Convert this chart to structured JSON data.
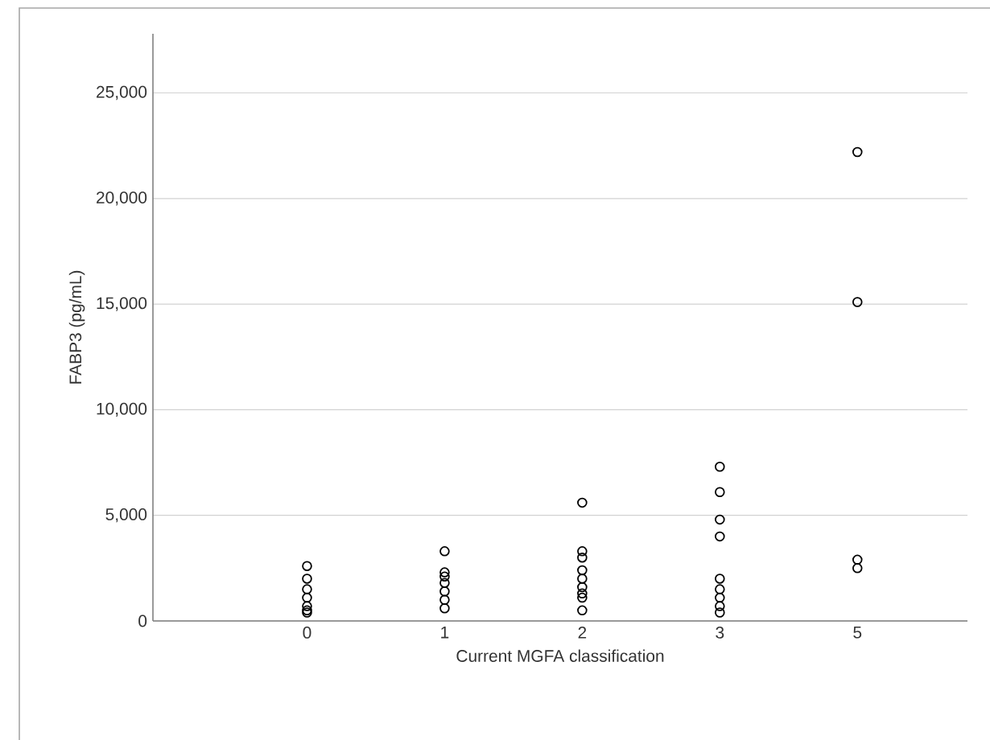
{
  "chart_data": {
    "type": "scatter",
    "xlabel": "Current MGFA classification",
    "ylabel": "FABP3 (pg/mL)",
    "categories": [
      "0",
      "1",
      "2",
      "3",
      "5"
    ],
    "series": [
      {
        "color": "#000000",
        "x": [
          "0",
          "0",
          "0",
          "0",
          "0",
          "0",
          "0"
        ],
        "values": [
          2600,
          2000,
          1500,
          1100,
          700,
          500,
          400
        ]
      },
      {
        "color": "#000000",
        "x": [
          "1",
          "1",
          "1",
          "1",
          "1",
          "1",
          "1"
        ],
        "values": [
          3300,
          2300,
          2100,
          1800,
          1400,
          1000,
          600
        ]
      },
      {
        "color": "#000000",
        "x": [
          "2",
          "2",
          "2",
          "2",
          "2",
          "2",
          "2",
          "2",
          "2"
        ],
        "values": [
          5600,
          3300,
          3000,
          2400,
          2000,
          1600,
          1300,
          1100,
          500
        ]
      },
      {
        "color": "#000000",
        "x": [
          "3",
          "3",
          "3",
          "3",
          "3",
          "3",
          "3",
          "3",
          "3"
        ],
        "values": [
          7300,
          6100,
          4800,
          4000,
          2000,
          1500,
          1100,
          700,
          400
        ]
      },
      {
        "color": "#000000",
        "x": [
          "5",
          "5",
          "5",
          "5"
        ],
        "values": [
          22200,
          15100,
          2900,
          2500
        ]
      }
    ],
    "ylim": [
      0,
      27800
    ],
    "yticks": [
      {
        "value": 0,
        "label": "0"
      },
      {
        "value": 5000,
        "label": "5,000"
      },
      {
        "value": 10000,
        "label": "10,000"
      },
      {
        "value": 15000,
        "label": "15,000"
      },
      {
        "value": 20000,
        "label": "20,000"
      },
      {
        "value": 25000,
        "label": "25,000"
      }
    ],
    "grid": "y",
    "marker": "circle"
  }
}
